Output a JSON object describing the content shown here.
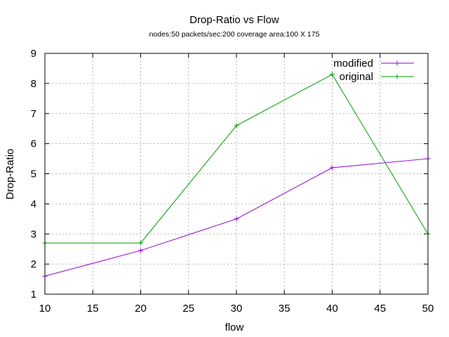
{
  "chart_data": {
    "type": "line",
    "title": "Drop-Ratio vs Flow",
    "subtitle": "nodes:50  packets/sec:200 coverage area:100 X 175",
    "xlabel": "flow",
    "ylabel": "Drop-Ratio",
    "xlim": [
      10,
      50
    ],
    "ylim": [
      1,
      9
    ],
    "xticks": [
      10,
      15,
      20,
      25,
      30,
      35,
      40,
      45,
      50
    ],
    "yticks": [
      1,
      2,
      3,
      4,
      5,
      6,
      7,
      8,
      9
    ],
    "grid": true,
    "legend_position": "top-right",
    "series": [
      {
        "name": "modified",
        "color": "#9400d3",
        "marker": "plus",
        "x": [
          10,
          20,
          30,
          40,
          50
        ],
        "y": [
          1.6,
          2.45,
          3.5,
          5.2,
          5.5
        ]
      },
      {
        "name": "original",
        "color": "#009e00",
        "marker": "plus",
        "x": [
          10,
          20,
          30,
          40,
          50
        ],
        "y": [
          2.7,
          2.7,
          6.6,
          8.3,
          3.0
        ]
      }
    ]
  }
}
